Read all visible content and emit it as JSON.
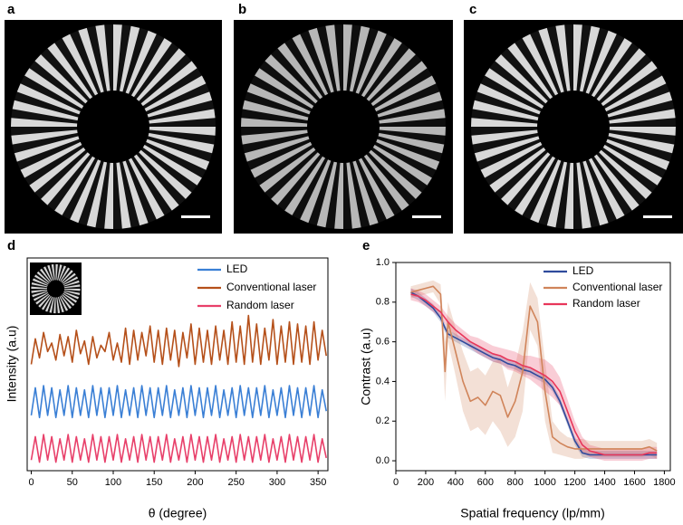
{
  "images": [
    {
      "label": "a"
    },
    {
      "label": "b"
    },
    {
      "label": "c"
    }
  ],
  "chart_data": [
    {
      "type": "line",
      "label": "d",
      "x_label": "θ (degree)",
      "y_label": "Intensity (a.u)",
      "xlim": [
        -5,
        362
      ],
      "ylim": [
        0,
        10
      ],
      "xticks": [
        0,
        50,
        100,
        150,
        200,
        250,
        300,
        350
      ],
      "x": [
        0,
        5,
        10,
        15,
        20,
        25,
        30,
        35,
        40,
        45,
        50,
        55,
        60,
        65,
        70,
        75,
        80,
        85,
        90,
        95,
        100,
        105,
        110,
        115,
        120,
        125,
        130,
        135,
        140,
        145,
        150,
        155,
        160,
        165,
        170,
        175,
        180,
        185,
        190,
        195,
        200,
        205,
        210,
        215,
        220,
        225,
        230,
        235,
        240,
        245,
        250,
        255,
        260,
        265,
        270,
        275,
        280,
        285,
        290,
        295,
        300,
        305,
        310,
        315,
        320,
        325,
        330,
        335,
        340,
        345,
        350,
        355,
        360
      ],
      "series": [
        {
          "name": "LED",
          "color": "#3a7fd5",
          "values": [
            2.6,
            3.9,
            2.5,
            4.0,
            2.6,
            3.9,
            2.5,
            3.8,
            2.6,
            4.0,
            2.5,
            3.9,
            2.6,
            3.8,
            2.5,
            4.0,
            2.6,
            3.9,
            2.5,
            3.9,
            2.6,
            4.0,
            2.5,
            3.8,
            2.6,
            3.9,
            2.5,
            4.0,
            2.6,
            3.9,
            2.5,
            3.9,
            2.6,
            4.0,
            2.5,
            3.8,
            2.6,
            3.9,
            2.5,
            4.0,
            2.6,
            3.9,
            2.5,
            3.9,
            2.6,
            4.0,
            2.5,
            3.8,
            2.6,
            3.9,
            2.5,
            4.0,
            2.6,
            3.9,
            2.5,
            3.9,
            2.6,
            4.0,
            2.5,
            3.8,
            2.6,
            3.9,
            2.5,
            4.0,
            2.6,
            3.9,
            2.5,
            3.9,
            2.6,
            4.0,
            2.5,
            3.8,
            2.8
          ]
        },
        {
          "name": "Conventional laser",
          "color": "#b5501a",
          "values": [
            5.0,
            6.2,
            5.3,
            6.5,
            5.6,
            6.0,
            5.2,
            6.4,
            5.4,
            6.3,
            5.1,
            6.6,
            5.5,
            6.1,
            5.0,
            6.3,
            5.3,
            5.9,
            5.6,
            6.5,
            5.2,
            6.0,
            5.1,
            6.7,
            5.0,
            6.6,
            5.2,
            6.5,
            5.4,
            6.8,
            5.1,
            6.6,
            5.0,
            6.7,
            5.2,
            6.6,
            4.9,
            6.5,
            5.3,
            6.9,
            5.0,
            6.7,
            5.1,
            6.6,
            5.0,
            6.8,
            5.2,
            6.6,
            5.0,
            7.0,
            5.1,
            6.8,
            5.0,
            7.3,
            5.1,
            6.9,
            5.0,
            6.7,
            5.2,
            7.1,
            5.0,
            6.8,
            5.1,
            7.0,
            5.0,
            6.9,
            5.1,
            6.8,
            5.0,
            7.0,
            5.2,
            6.6,
            5.4
          ]
        },
        {
          "name": "Random laser",
          "color": "#e8406a",
          "values": [
            0.5,
            1.6,
            0.4,
            1.7,
            0.5,
            1.6,
            0.4,
            1.5,
            0.5,
            1.7,
            0.4,
            1.6,
            0.5,
            1.5,
            0.4,
            1.7,
            0.5,
            1.6,
            0.4,
            1.6,
            0.5,
            1.7,
            0.4,
            1.5,
            0.5,
            1.6,
            0.4,
            1.7,
            0.5,
            1.6,
            0.4,
            1.6,
            0.5,
            1.7,
            0.4,
            1.5,
            0.5,
            1.6,
            0.4,
            1.7,
            0.5,
            1.6,
            0.4,
            1.6,
            0.5,
            1.7,
            0.4,
            1.5,
            0.5,
            1.6,
            0.4,
            1.7,
            0.5,
            1.6,
            0.4,
            1.6,
            0.5,
            1.7,
            0.4,
            1.5,
            0.5,
            1.6,
            0.4,
            1.7,
            0.5,
            1.6,
            0.4,
            1.6,
            0.5,
            1.7,
            0.4,
            1.5,
            0.6
          ]
        }
      ]
    },
    {
      "type": "line",
      "label": "e",
      "x_label": "Spatial frequency (lp/mm)",
      "y_label": "Contrast (a.u)",
      "xlim": [
        0,
        1840
      ],
      "ylim": [
        -0.05,
        1.0
      ],
      "xticks": [
        0,
        200,
        400,
        600,
        800,
        1000,
        1200,
        1400,
        1600,
        1800
      ],
      "yticks": [
        {
          "value": 0,
          "label": "0.0"
        },
        0.2,
        0.4,
        0.6,
        0.8,
        {
          "value": 1,
          "label": "1.0"
        }
      ],
      "x": [
        100,
        150,
        200,
        250,
        300,
        330,
        350,
        400,
        450,
        500,
        550,
        600,
        650,
        700,
        750,
        800,
        850,
        900,
        950,
        1000,
        1050,
        1100,
        1150,
        1200,
        1250,
        1300,
        1350,
        1400,
        1450,
        1500,
        1550,
        1600,
        1650,
        1700,
        1750
      ],
      "series": [
        {
          "name": "LED",
          "color": "#2f4b9c",
          "values": [
            0.85,
            0.83,
            0.8,
            0.77,
            0.72,
            0.67,
            0.64,
            0.62,
            0.6,
            0.58,
            0.56,
            0.54,
            0.52,
            0.51,
            0.49,
            0.48,
            0.46,
            0.45,
            0.43,
            0.41,
            0.37,
            0.3,
            0.2,
            0.1,
            0.04,
            0.03,
            0.03,
            0.03,
            0.03,
            0.03,
            0.03,
            0.03,
            0.03,
            0.03,
            0.03
          ],
          "errors": [
            0.02,
            0.02,
            0.02,
            0.02,
            0.02,
            0.02,
            0.02,
            0.02,
            0.02,
            0.02,
            0.02,
            0.02,
            0.02,
            0.02,
            0.02,
            0.02,
            0.02,
            0.02,
            0.02,
            0.02,
            0.02,
            0.02,
            0.02,
            0.02,
            0.02,
            0.02,
            0.02,
            0.02,
            0.02,
            0.02,
            0.02,
            0.02,
            0.02,
            0.02,
            0.02
          ]
        },
        {
          "name": "Conventional laser",
          "color": "#d0845a",
          "values": [
            0.85,
            0.86,
            0.87,
            0.88,
            0.84,
            0.45,
            0.7,
            0.55,
            0.4,
            0.3,
            0.32,
            0.28,
            0.35,
            0.33,
            0.22,
            0.3,
            0.45,
            0.78,
            0.7,
            0.35,
            0.12,
            0.09,
            0.07,
            0.06,
            0.06,
            0.06,
            0.06,
            0.06,
            0.06,
            0.06,
            0.06,
            0.06,
            0.06,
            0.07,
            0.05
          ],
          "errors": [
            0.03,
            0.03,
            0.03,
            0.03,
            0.05,
            0.15,
            0.1,
            0.12,
            0.15,
            0.15,
            0.15,
            0.15,
            0.15,
            0.18,
            0.15,
            0.18,
            0.2,
            0.12,
            0.12,
            0.15,
            0.08,
            0.06,
            0.05,
            0.05,
            0.05,
            0.04,
            0.04,
            0.04,
            0.04,
            0.04,
            0.04,
            0.04,
            0.04,
            0.04,
            0.04
          ]
        },
        {
          "name": "Random laser",
          "color": "#e8365a",
          "values": [
            0.84,
            0.83,
            0.81,
            0.78,
            0.75,
            0.72,
            0.7,
            0.66,
            0.63,
            0.6,
            0.58,
            0.56,
            0.54,
            0.53,
            0.51,
            0.5,
            0.48,
            0.47,
            0.45,
            0.43,
            0.4,
            0.35,
            0.25,
            0.15,
            0.08,
            0.05,
            0.04,
            0.03,
            0.03,
            0.03,
            0.03,
            0.03,
            0.03,
            0.04,
            0.04
          ],
          "errors": [
            0.03,
            0.03,
            0.03,
            0.03,
            0.03,
            0.03,
            0.03,
            0.03,
            0.03,
            0.03,
            0.04,
            0.04,
            0.04,
            0.04,
            0.05,
            0.05,
            0.05,
            0.06,
            0.07,
            0.08,
            0.08,
            0.07,
            0.06,
            0.05,
            0.04,
            0.03,
            0.03,
            0.03,
            0.03,
            0.03,
            0.03,
            0.03,
            0.03,
            0.03,
            0.03
          ]
        }
      ]
    }
  ]
}
